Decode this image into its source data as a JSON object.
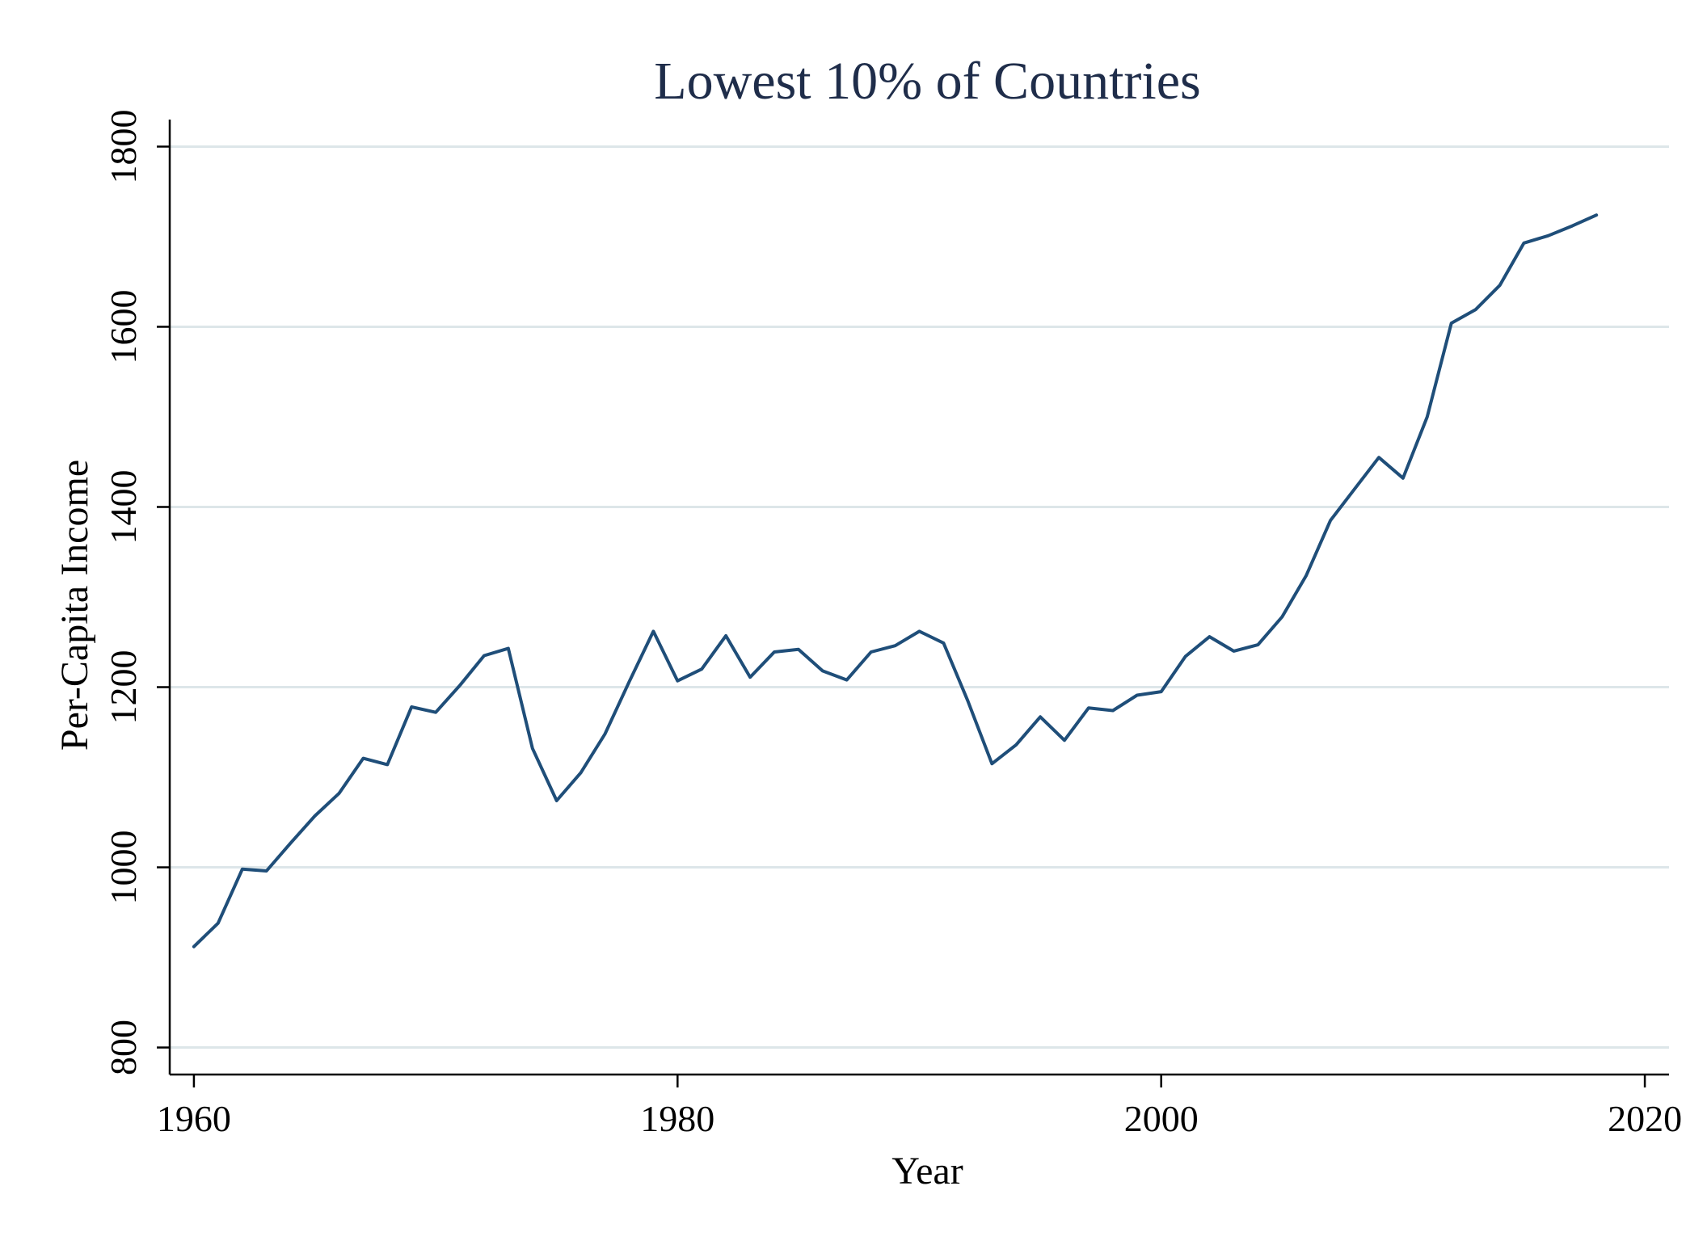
{
  "chart_data": {
    "type": "line",
    "title": "Lowest 10% of Countries",
    "xlabel": "Year",
    "ylabel": "Per-Capita Income",
    "xlim": [
      1959,
      2021
    ],
    "ylim": [
      770,
      1830
    ],
    "x_ticks": [
      1960,
      1980,
      2000,
      2020
    ],
    "y_ticks": [
      800,
      1000,
      1200,
      1400,
      1600,
      1800
    ],
    "grid": "horizontal",
    "legend": "none",
    "colors": {
      "line": "#1f4e79",
      "grid": "#dde6e9",
      "axis": "#000000",
      "title": "#1f2d4a",
      "text": "#000000"
    },
    "series": [
      {
        "x": [
          1960,
          1961,
          1962,
          1963,
          1964,
          1965,
          1966,
          1967,
          1968,
          1969,
          1970,
          1971,
          1972,
          1973,
          1974,
          1975,
          1976,
          1977,
          1978,
          1979,
          1980,
          1981,
          1982,
          1983,
          1984,
          1985,
          1986,
          1987,
          1988,
          1989,
          1990,
          1991,
          1992,
          1993,
          1994,
          1995,
          1996,
          1997,
          1998,
          1999,
          2000,
          2001,
          2002,
          2003,
          2004,
          2005,
          2006,
          2007,
          2008,
          2009,
          2010,
          2011,
          2012,
          2013,
          2014,
          2015,
          2016,
          2017,
          2018
        ],
        "y": [
          912,
          938,
          998,
          996,
          1027,
          1057,
          1082,
          1121,
          1114,
          1178,
          1172,
          1202,
          1235,
          1243,
          1132,
          1074,
          1105,
          1148,
          1206,
          1262,
          1207,
          1220,
          1257,
          1211,
          1239,
          1242,
          1218,
          1208,
          1239,
          1246,
          1262,
          1249,
          1185,
          1115,
          1136,
          1167,
          1141,
          1177,
          1174,
          1191,
          1195,
          1234,
          1256,
          1240,
          1247,
          1278,
          1324,
          1385,
          1420,
          1455,
          1432,
          1500,
          1604,
          1619,
          1646,
          1693,
          1701,
          1712,
          1724
        ]
      }
    ]
  }
}
